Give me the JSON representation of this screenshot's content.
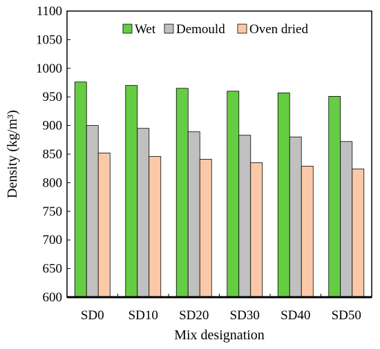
{
  "chart_data": {
    "type": "bar",
    "title": "",
    "xlabel": "Mix designation",
    "ylabel": "Density (kg/m³)",
    "ylim": [
      600,
      1100
    ],
    "yticks": [
      600,
      650,
      700,
      750,
      800,
      850,
      900,
      950,
      1000,
      1050,
      1100
    ],
    "categories": [
      "SD0",
      "SD10",
      "SD20",
      "SD30",
      "SD40",
      "SD50"
    ],
    "series": [
      {
        "name": "Wet",
        "color": "#66cc44",
        "values": [
          976,
          970,
          965,
          960,
          957,
          951
        ]
      },
      {
        "name": "Demould",
        "color": "#c0c0c0",
        "values": [
          900,
          895,
          889,
          883,
          880,
          872
        ]
      },
      {
        "name": "Oven dried",
        "color": "#fcc9a8",
        "values": [
          852,
          846,
          841,
          835,
          829,
          824
        ]
      }
    ],
    "grid": false,
    "legend_position": "top"
  }
}
